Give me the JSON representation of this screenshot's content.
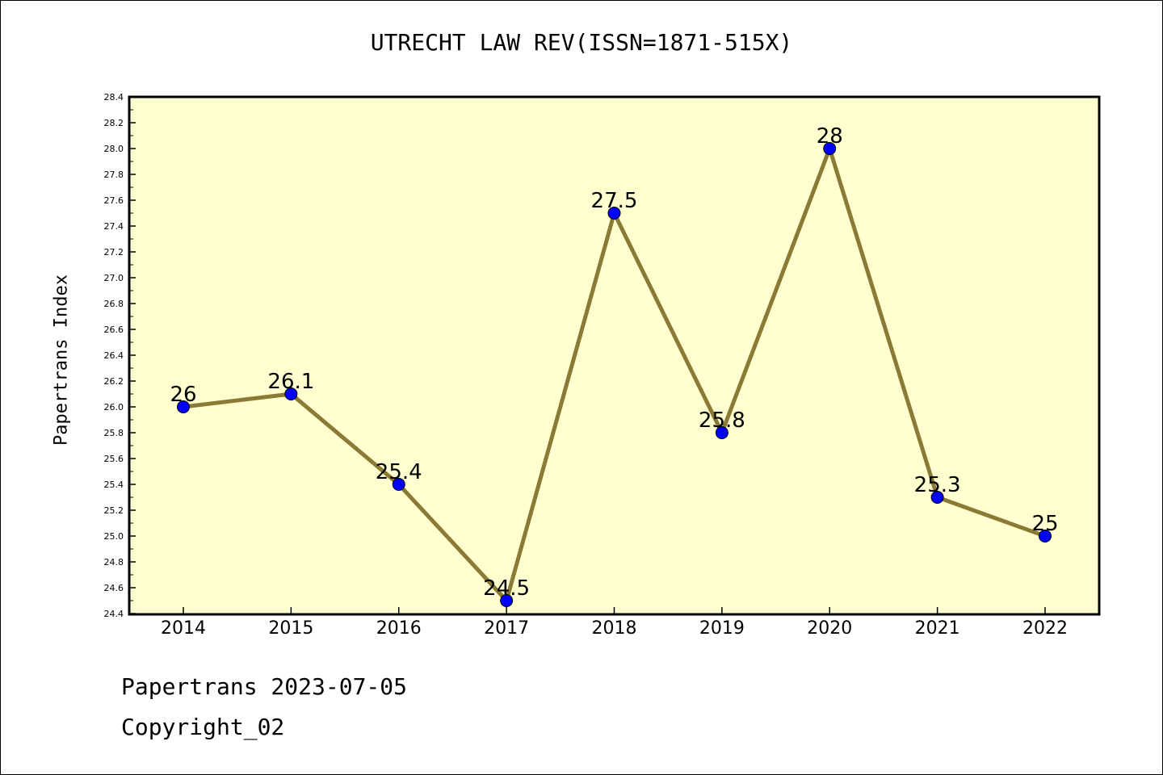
{
  "chart_data": {
    "type": "line",
    "title": "UTRECHT LAW REV(ISSN=1871-515X)",
    "ylabel": "Papertrans Index",
    "xlabel": "",
    "categories": [
      "2014",
      "2015",
      "2016",
      "2017",
      "2018",
      "2019",
      "2020",
      "2021",
      "2022"
    ],
    "values": [
      26,
      26.1,
      25.4,
      24.5,
      27.5,
      25.8,
      28,
      25.3,
      25
    ],
    "data_labels": [
      "26",
      "26.1",
      "25.4",
      "24.5",
      "27.5",
      "25.8",
      "28",
      "25.3",
      "25"
    ],
    "ylim": [
      24.4,
      28.4
    ],
    "y_ticks": [
      "24.4",
      "24.6",
      "24.8",
      "25.0",
      "25.2",
      "25.4",
      "25.6",
      "25.8",
      "26.0",
      "26.2",
      "26.4",
      "26.6",
      "26.8",
      "27.0",
      "27.2",
      "27.4",
      "27.6",
      "27.8",
      "28.0",
      "28.2",
      "28.4"
    ],
    "grid": false,
    "colors": {
      "plot_background": "#ffffd0",
      "line": "#8b7a35",
      "marker": "#0000ff"
    }
  },
  "footer": {
    "line1": "Papertrans 2023-07-05",
    "line2": "Copyright_02"
  }
}
